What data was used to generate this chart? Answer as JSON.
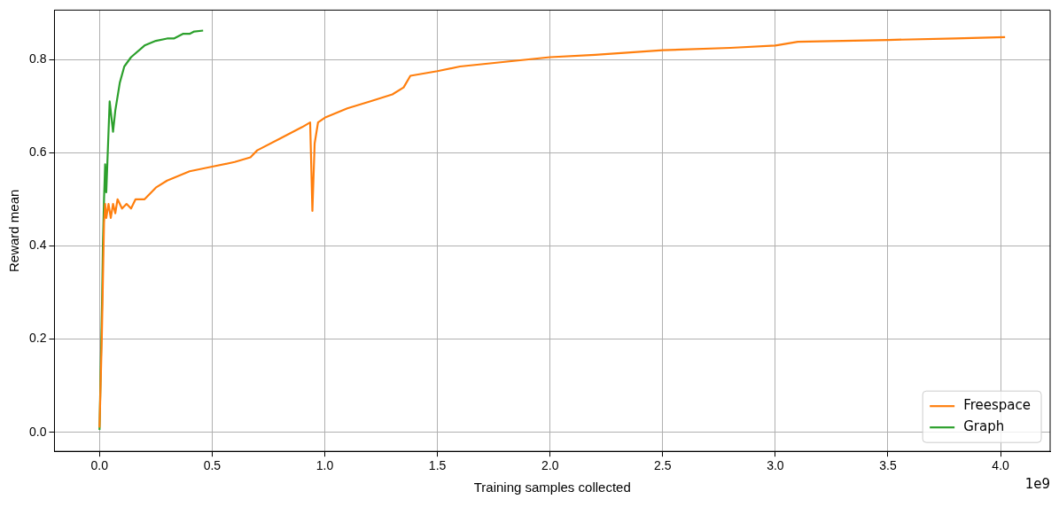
{
  "chart_data": {
    "type": "line",
    "xlabel": "Training samples collected",
    "ylabel": "Reward mean",
    "annotations": [
      "1e9"
    ],
    "xlim": [
      -0.2,
      4.22
    ],
    "ylim": [
      -0.041,
      0.906
    ],
    "xticks": [
      {
        "value": 0,
        "label": "0.0"
      },
      0.5,
      {
        "value": 1,
        "label": "1.0"
      },
      1.5,
      {
        "value": 2,
        "label": "2.0"
      },
      2.5,
      {
        "value": 3,
        "label": "3.0"
      },
      3.5,
      {
        "value": 4,
        "label": "4.0"
      }
    ],
    "yticks": [
      {
        "value": 0,
        "label": "0.0"
      },
      0.2,
      0.4,
      0.6,
      0.8
    ],
    "grid": true,
    "legend": "bottom right",
    "marker": "none",
    "line_style": "solid",
    "series": [
      {
        "name": "Freespace",
        "color": "#ff7f0e",
        "x": [
          0,
          0.01,
          0.02,
          0.025,
          0.03,
          0.04,
          0.05,
          0.06,
          0.07,
          0.08,
          0.1,
          0.12,
          0.14,
          0.16,
          0.2,
          0.25,
          0.3,
          0.4,
          0.5,
          0.6,
          0.67,
          0.7,
          0.8,
          0.9,
          0.935,
          0.945,
          0.955,
          0.97,
          1.0,
          1.1,
          1.2,
          1.3,
          1.35,
          1.38,
          1.5,
          1.6,
          1.8,
          2.0,
          2.2,
          2.5,
          2.8,
          3.0,
          3.1,
          3.3,
          3.5,
          3.8,
          4.02
        ],
        "values": [
          0.01,
          0.2,
          0.45,
          0.49,
          0.46,
          0.49,
          0.46,
          0.49,
          0.47,
          0.5,
          0.48,
          0.49,
          0.48,
          0.5,
          0.5,
          0.525,
          0.54,
          0.56,
          0.57,
          0.58,
          0.59,
          0.605,
          0.63,
          0.655,
          0.665,
          0.475,
          0.62,
          0.665,
          0.675,
          0.695,
          0.71,
          0.725,
          0.74,
          0.765,
          0.775,
          0.785,
          0.795,
          0.805,
          0.81,
          0.82,
          0.825,
          0.83,
          0.838,
          0.84,
          0.842,
          0.845,
          0.848
        ]
      },
      {
        "name": "Graph",
        "color": "#2ca02c",
        "x": [
          0,
          0.012,
          0.015,
          0.02,
          0.025,
          0.03,
          0.035,
          0.045,
          0.06,
          0.07,
          0.09,
          0.11,
          0.14,
          0.2,
          0.25,
          0.3,
          0.33,
          0.37,
          0.4,
          0.42,
          0.46
        ],
        "values": [
          0.005,
          0.3,
          0.4,
          0.5,
          0.575,
          0.515,
          0.58,
          0.71,
          0.645,
          0.69,
          0.75,
          0.785,
          0.805,
          0.83,
          0.84,
          0.845,
          0.845,
          0.855,
          0.855,
          0.86,
          0.862
        ]
      }
    ]
  }
}
